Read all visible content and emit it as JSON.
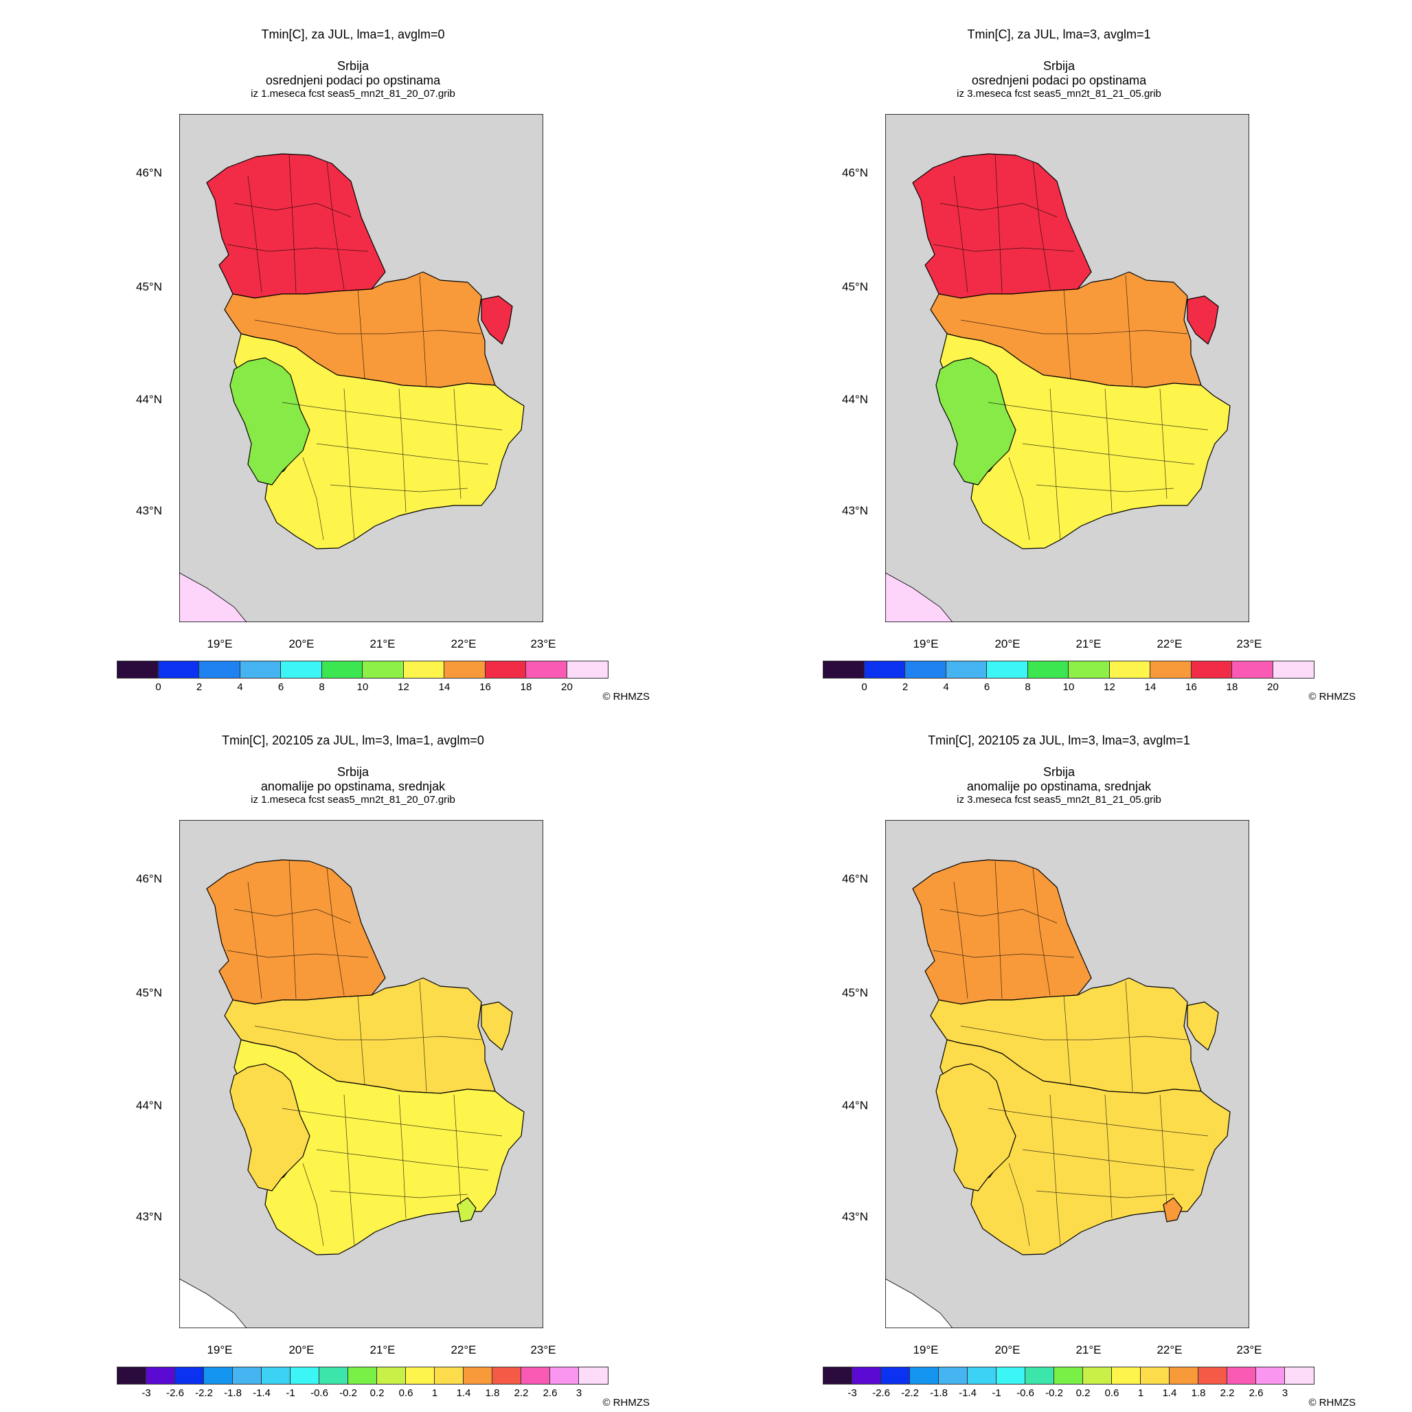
{
  "panels": [
    {
      "title": "Tmin[C], za JUL, lma=1, avglm=0",
      "region": "Srbija",
      "subtitle": "osrednjeni podaci po opstinama",
      "source": "iz 1.meseca fcst seas5_mn2t_81_20_07.grib",
      "palette": "abs",
      "region_fills": {
        "north": "#f22c46",
        "central": "#f99a3a",
        "south": "#fdf44c",
        "west": "#88ea47",
        "east_spot": "#f22c46",
        "spot": null
      },
      "corner_fill": "#fdd5fb"
    },
    {
      "title": "Tmin[C], za JUL, lma=3, avglm=1",
      "region": "Srbija",
      "subtitle": "osrednjeni podaci po opstinama",
      "source": "iz 3.meseca fcst seas5_mn2t_81_21_05.grib",
      "palette": "abs",
      "region_fills": {
        "north": "#f22c46",
        "central": "#f99a3a",
        "south": "#fdf44c",
        "west": "#88ea47",
        "east_spot": "#f22c46",
        "spot": null
      },
      "corner_fill": "#fdd5fb"
    },
    {
      "title": "Tmin[C], 202105 za JUL, lm=3, lma=1, avglm=0",
      "region": "Srbija",
      "subtitle": "anomalije po opstinama, srednjak",
      "source": "iz 1.meseca fcst seas5_mn2t_81_20_07.grib",
      "palette": "anom",
      "region_fills": {
        "north": "#f99a3a",
        "central": "#fddc4c",
        "south": "#fdf44c",
        "west": "#fddc4c",
        "east_spot": "#fddc4c",
        "spot": "#cdf346"
      },
      "corner_fill": "#ffffff"
    },
    {
      "title": "Tmin[C], 202105 za JUL, lm=3, lma=3, avglm=1",
      "region": "Srbija",
      "subtitle": "anomalije po opstinama, srednjak",
      "source": "iz 3.meseca fcst seas5_mn2t_81_21_05.grib",
      "palette": "anom",
      "region_fills": {
        "north": "#f99a3a",
        "central": "#fddc4c",
        "south": "#fddc4c",
        "west": "#fddc4c",
        "east_spot": "#fddc4c",
        "spot": "#f99a3a"
      },
      "corner_fill": "#ffffff"
    }
  ],
  "axes": {
    "lat_labels": [
      "46°N",
      "45°N",
      "44°N",
      "43°N"
    ],
    "lon_labels": [
      "19°E",
      "20°E",
      "21°E",
      "22°E",
      "23°E"
    ]
  },
  "palettes": {
    "abs": {
      "colors": [
        "#2b0a3d",
        "#0a32f0",
        "#1e82f0",
        "#46b4f0",
        "#3cf5f5",
        "#3ce650",
        "#8cf046",
        "#fdf44c",
        "#f99a3a",
        "#f22c46",
        "#fa5ab4",
        "#fddcfa"
      ],
      "labels": [
        "0",
        "2",
        "4",
        "6",
        "8",
        "10",
        "12",
        "14",
        "16",
        "18",
        "20"
      ]
    },
    "anom": {
      "colors": [
        "#2b0a3d",
        "#5a0ad2",
        "#0a32f0",
        "#1496f0",
        "#46b4f0",
        "#3cd2f5",
        "#3cf5f5",
        "#3ce6aa",
        "#78f046",
        "#c8f046",
        "#fdf44c",
        "#fddc4c",
        "#f99a3a",
        "#f55a46",
        "#fa5ab4",
        "#fa96f0",
        "#fddcfa"
      ],
      "labels": [
        "-3",
        "-2.6",
        "-2.2",
        "-1.8",
        "-1.4",
        "-1",
        "-0.6",
        "-0.2",
        "0.2",
        "0.6",
        "1",
        "1.4",
        "1.8",
        "2.2",
        "2.6",
        "3"
      ]
    }
  },
  "copyright": "© RHMZS"
}
